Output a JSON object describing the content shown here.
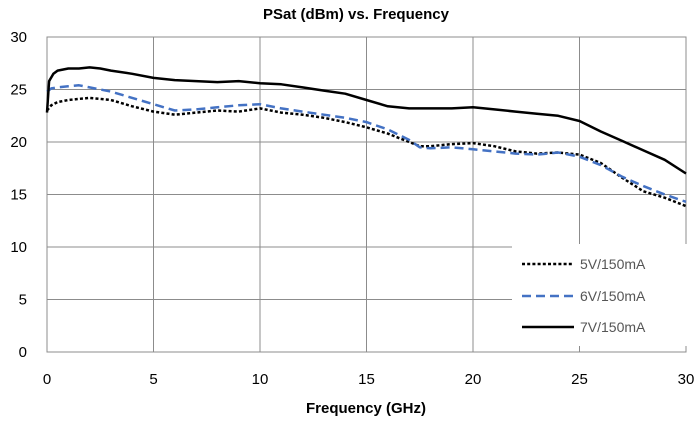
{
  "chart_data": {
    "type": "line",
    "title": "PSat (dBm) vs. Frequency",
    "xlabel": "Frequency (GHz)",
    "ylabel": "",
    "xlim": [
      0,
      30
    ],
    "ylim": [
      0,
      30
    ],
    "xticks": [
      "0",
      "5",
      "10",
      "15",
      "20",
      "25",
      "30"
    ],
    "yticks": [
      "0",
      "5",
      "10",
      "15",
      "20",
      "25",
      "30"
    ],
    "grid": true,
    "legend_position": "bottom-right",
    "series": [
      {
        "name": "5V/150mA",
        "style": "dotted",
        "color": "#000000",
        "x": [
          0,
          0.2,
          0.5,
          1,
          1.5,
          2,
          2.5,
          3,
          4,
          5,
          6,
          7,
          8,
          9,
          10,
          11,
          12,
          13,
          14,
          15,
          16,
          17,
          17.5,
          18,
          19,
          20,
          21,
          22,
          23,
          24,
          25,
          26,
          27,
          28,
          29,
          30
        ],
        "y": [
          23.0,
          23.5,
          23.8,
          24.0,
          24.1,
          24.2,
          24.1,
          24.0,
          23.4,
          22.9,
          22.6,
          22.8,
          23.0,
          22.9,
          23.2,
          22.8,
          22.6,
          22.3,
          21.9,
          21.4,
          20.8,
          20.0,
          19.6,
          19.6,
          19.8,
          19.9,
          19.6,
          19.1,
          18.9,
          19.0,
          18.8,
          18.0,
          16.6,
          15.3,
          14.7,
          13.9
        ]
      },
      {
        "name": "6V/150mA",
        "style": "dashed",
        "color": "#4472C4",
        "x": [
          0,
          0.2,
          0.5,
          1,
          1.5,
          2,
          2.5,
          3,
          4,
          5,
          6,
          7,
          8,
          9,
          10,
          11,
          12,
          13,
          14,
          15,
          16,
          17,
          17.5,
          18,
          19,
          20,
          21,
          22,
          23,
          24,
          25,
          26,
          27,
          28,
          29,
          30
        ],
        "y": [
          24.8,
          25.1,
          25.2,
          25.3,
          25.4,
          25.2,
          25.0,
          24.8,
          24.2,
          23.6,
          23.0,
          23.1,
          23.3,
          23.5,
          23.6,
          23.2,
          22.9,
          22.6,
          22.3,
          21.9,
          21.2,
          20.2,
          19.5,
          19.4,
          19.5,
          19.3,
          19.1,
          18.9,
          18.8,
          19.0,
          18.6,
          17.8,
          16.7,
          15.8,
          15.0,
          14.3
        ]
      },
      {
        "name": "7V/150mA",
        "style": "solid",
        "color": "#000000",
        "x": [
          0,
          0.1,
          0.3,
          0.5,
          1,
          1.5,
          2,
          2.5,
          3,
          4,
          5,
          6,
          7,
          8,
          9,
          10,
          11,
          12,
          13,
          14,
          15,
          16,
          17,
          18,
          19,
          20,
          21,
          22,
          23,
          24,
          25,
          26,
          27,
          28,
          29,
          30
        ],
        "y": [
          22.8,
          25.8,
          26.5,
          26.8,
          27.0,
          27.0,
          27.1,
          27.0,
          26.8,
          26.5,
          26.1,
          25.9,
          25.8,
          25.7,
          25.8,
          25.6,
          25.5,
          25.2,
          24.9,
          24.6,
          24.0,
          23.4,
          23.2,
          23.2,
          23.2,
          23.3,
          23.1,
          22.9,
          22.7,
          22.5,
          22.0,
          21.0,
          20.1,
          19.2,
          18.3,
          17.0
        ]
      }
    ]
  }
}
